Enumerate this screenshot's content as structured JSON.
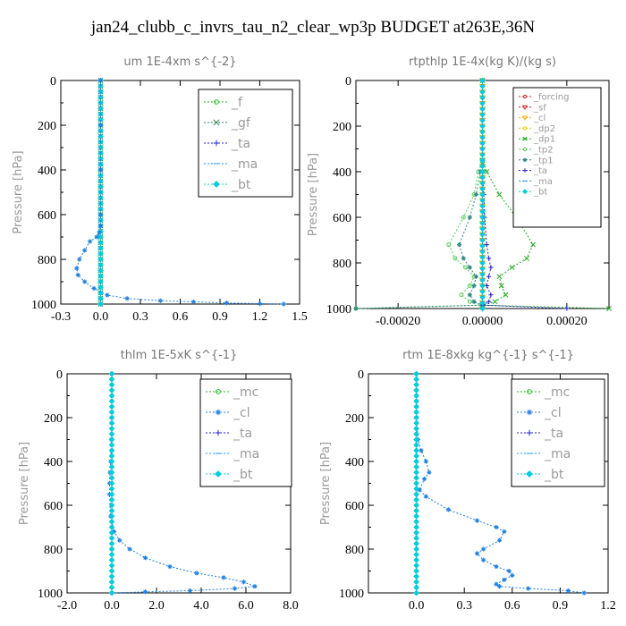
{
  "title": "jan24_clubb_c_invrs_tau_n2_clear_wp3p  BUDGET at263E,36N",
  "chart_data": [
    {
      "type": "line",
      "title": "um  1E-4xm s^{-2}",
      "ylabel": "Pressure [hPa]",
      "xlim": [
        -0.3,
        1.5
      ],
      "ylim": [
        1000,
        0
      ],
      "xticks": [
        -0.3,
        0.0,
        0.3,
        0.6,
        0.9,
        1.2,
        1.5
      ],
      "xtick_labels": [
        "-0.3",
        "0.0",
        "0.3",
        "0.6",
        "0.9",
        "1.2",
        "1.5"
      ],
      "yticks": [
        0,
        200,
        400,
        600,
        800,
        1000
      ],
      "legend_position": "top-right",
      "series": [
        {
          "name": "_f",
          "color": "#22bb22",
          "marker": "circle",
          "x": [
            0,
            0,
            0,
            0,
            0,
            0,
            0,
            0,
            0,
            0,
            0
          ],
          "y": [
            0,
            100,
            200,
            300,
            400,
            500,
            600,
            700,
            800,
            900,
            1000
          ]
        },
        {
          "name": "_gf",
          "color": "#2e8b57",
          "marker": "x",
          "x": [
            0,
            0,
            0,
            0,
            0,
            0,
            0,
            0,
            0,
            0,
            0
          ],
          "y": [
            0,
            100,
            200,
            300,
            400,
            500,
            600,
            700,
            800,
            900,
            1000
          ]
        },
        {
          "name": "_ta",
          "color": "#2222cc",
          "marker": "plus",
          "x": [
            0,
            0,
            0,
            0,
            0,
            0,
            0,
            0,
            0,
            0,
            0
          ],
          "y": [
            0,
            100,
            200,
            300,
            400,
            500,
            600,
            700,
            800,
            900,
            1000
          ]
        },
        {
          "name": "_ma",
          "color": "#1e90ff",
          "marker": "dash",
          "x": [
            0,
            0,
            0,
            0,
            0,
            0,
            0,
            0,
            0,
            0,
            0
          ],
          "y": [
            0,
            100,
            200,
            300,
            400,
            500,
            600,
            700,
            800,
            900,
            1000
          ]
        },
        {
          "name": "_bt",
          "color": "#00ccdd",
          "marker": "diamond",
          "x": [
            0,
            0,
            0,
            0,
            0,
            0,
            0,
            0,
            0,
            0,
            0
          ],
          "y": [
            0,
            100,
            200,
            300,
            400,
            500,
            600,
            700,
            800,
            900,
            1000
          ]
        },
        {
          "name": "",
          "color": "#1e7fe0",
          "marker": "star",
          "x": [
            0,
            0,
            0,
            0,
            0,
            -0.01,
            -0.03,
            -0.08,
            -0.12,
            -0.16,
            -0.18,
            -0.17,
            -0.12,
            -0.05,
            0.05,
            0.2,
            0.45,
            0.7,
            0.95,
            1.2,
            1.38
          ],
          "y": [
            0,
            200,
            400,
            600,
            650,
            680,
            700,
            720,
            760,
            800,
            840,
            870,
            900,
            930,
            960,
            975,
            985,
            990,
            995,
            998,
            1000
          ]
        }
      ]
    },
    {
      "type": "line",
      "title": "rtpthlp  1E-4x(kg K)/(kg s)",
      "ylabel": "Pressure [hPa]",
      "xlim": [
        -0.0003,
        0.0003
      ],
      "ylim": [
        1000,
        0
      ],
      "xticks": [
        -0.0002,
        0.0,
        0.0002
      ],
      "xtick_labels": [
        "-0.00020",
        "0.00000",
        "0.00020"
      ],
      "yticks": [
        0,
        200,
        400,
        600,
        800,
        1000
      ],
      "legend_position": "top-right",
      "series": [
        {
          "name": "_forcing",
          "color": "#cc2222",
          "marker": "circle",
          "x": [
            0,
            0,
            0,
            0,
            0,
            0,
            0,
            0,
            0,
            0,
            0
          ],
          "y": [
            0,
            100,
            200,
            300,
            400,
            500,
            600,
            700,
            800,
            900,
            1000
          ]
        },
        {
          "name": "_sf",
          "color": "#cc2222",
          "marker": "triangle",
          "x": [
            0,
            0,
            0,
            0,
            0,
            0,
            0,
            0,
            0,
            0,
            0
          ],
          "y": [
            0,
            100,
            200,
            300,
            400,
            500,
            600,
            700,
            800,
            900,
            1000
          ]
        },
        {
          "name": "_cl",
          "color": "#ffaa00",
          "marker": "triangle",
          "x": [
            0,
            0,
            0,
            0,
            0,
            0,
            0,
            0,
            0,
            0,
            0
          ],
          "y": [
            0,
            100,
            200,
            300,
            400,
            500,
            600,
            700,
            800,
            900,
            1000
          ]
        },
        {
          "name": "_dp2",
          "color": "#eecc00",
          "marker": "circle",
          "x": [
            0,
            0,
            0,
            0,
            0,
            0,
            0,
            0,
            0,
            0,
            0
          ],
          "y": [
            0,
            100,
            200,
            300,
            400,
            500,
            600,
            700,
            800,
            900,
            1000
          ]
        },
        {
          "name": "_dp1",
          "color": "#22aa22",
          "marker": "x",
          "x": [
            0,
            0,
            1e-05,
            4e-05,
            8e-05,
            0.00012,
            0.000105,
            7e-05,
            4e-05,
            4.5e-05,
            5.5e-05,
            3e-05,
            0.0,
            0.0003
          ],
          "y": [
            0,
            350,
            400,
            500,
            600,
            720,
            780,
            820,
            860,
            900,
            940,
            970,
            985,
            1000
          ]
        },
        {
          "name": "_tp2",
          "color": "#55cc55",
          "marker": "circle",
          "x": [
            0,
            0,
            -1e-05,
            -2e-05,
            -4.5e-05,
            -8e-05,
            -6.5e-05,
            -4e-05,
            -2e-05,
            -3e-05,
            -5e-05,
            -3e-05,
            0,
            -0.0003
          ],
          "y": [
            0,
            350,
            400,
            500,
            600,
            720,
            780,
            820,
            860,
            900,
            940,
            970,
            985,
            1000
          ]
        },
        {
          "name": "_tp1",
          "color": "#338888",
          "marker": "star",
          "x": [
            0,
            0,
            -5e-06,
            -1.5e-05,
            -3e-05,
            -5.5e-05,
            -4.5e-05,
            -3e-05,
            -1.5e-05,
            -2e-05,
            -3e-05,
            -2e-05,
            0,
            -0.0003
          ],
          "y": [
            0,
            350,
            400,
            500,
            600,
            720,
            780,
            820,
            860,
            900,
            940,
            970,
            985,
            1000
          ]
        },
        {
          "name": "_ta",
          "color": "#2222cc",
          "marker": "plus",
          "x": [
            0,
            0,
            0,
            3e-06,
            5e-06,
            1e-05,
            1.5e-05,
            2e-05,
            1.5e-05,
            1e-05,
            2e-05,
            1.5e-05,
            0,
            0.0002
          ],
          "y": [
            0,
            350,
            400,
            500,
            600,
            720,
            780,
            820,
            860,
            900,
            940,
            970,
            985,
            1000
          ]
        },
        {
          "name": "_ma",
          "color": "#1e90ff",
          "marker": "dash",
          "x": [
            0,
            0,
            0,
            0,
            0,
            0,
            0,
            0,
            0,
            0,
            0
          ],
          "y": [
            0,
            100,
            200,
            300,
            400,
            500,
            600,
            700,
            800,
            900,
            1000
          ]
        },
        {
          "name": "_bt",
          "color": "#00ccdd",
          "marker": "diamond",
          "x": [
            0,
            0,
            0,
            0,
            0,
            0,
            0,
            0,
            0,
            0,
            0
          ],
          "y": [
            0,
            100,
            200,
            300,
            400,
            500,
            600,
            700,
            800,
            900,
            1000
          ]
        }
      ]
    },
    {
      "type": "line",
      "title": "thlm  1E-5xK s^{-1}",
      "ylabel": "Pressure [hPa]",
      "xlim": [
        -2.0,
        8.0
      ],
      "ylim": [
        1000,
        0
      ],
      "xticks": [
        -2.0,
        0.0,
        2.0,
        4.0,
        6.0,
        8.0
      ],
      "xtick_labels": [
        "-2.0",
        "0.0",
        "2.0",
        "4.0",
        "6.0",
        "8.0"
      ],
      "yticks": [
        0,
        200,
        400,
        600,
        800,
        1000
      ],
      "legend_position": "top-right",
      "series": [
        {
          "name": "_mc",
          "color": "#22bb22",
          "marker": "circle",
          "x": [
            0,
            0,
            0,
            0,
            0,
            0,
            0,
            0,
            0,
            0,
            0
          ],
          "y": [
            0,
            100,
            200,
            300,
            400,
            500,
            600,
            700,
            800,
            900,
            1000
          ]
        },
        {
          "name": "_cl",
          "color": "#1e7fe0",
          "marker": "star",
          "x": [
            0,
            0,
            -0.02,
            -0.05,
            -0.08,
            -0.1,
            -0.1,
            -0.05,
            0.1,
            0.35,
            0.8,
            1.5,
            2.6,
            3.8,
            5.0,
            5.9,
            6.4,
            5.5,
            3.5,
            1.5,
            0
          ],
          "y": [
            0,
            200,
            300,
            400,
            450,
            500,
            550,
            650,
            720,
            760,
            800,
            840,
            880,
            910,
            930,
            950,
            970,
            980,
            990,
            995,
            1000
          ]
        },
        {
          "name": "_ta",
          "color": "#2222cc",
          "marker": "plus",
          "x": [
            0,
            0,
            0,
            0,
            0,
            0,
            0,
            0,
            0,
            0,
            0
          ],
          "y": [
            0,
            100,
            200,
            300,
            400,
            500,
            600,
            700,
            800,
            900,
            1000
          ]
        },
        {
          "name": "_ma",
          "color": "#1e90ff",
          "marker": "dash",
          "x": [
            0,
            0,
            0,
            0,
            0,
            0,
            0,
            0,
            0,
            0,
            0
          ],
          "y": [
            0,
            100,
            200,
            300,
            400,
            500,
            600,
            700,
            800,
            900,
            1000
          ]
        },
        {
          "name": "_bt",
          "color": "#00ccdd",
          "marker": "diamond",
          "x": [
            0,
            0,
            0,
            0,
            0,
            0,
            0,
            0,
            0,
            0,
            0
          ],
          "y": [
            0,
            100,
            200,
            300,
            400,
            500,
            600,
            700,
            800,
            900,
            1000
          ]
        }
      ]
    },
    {
      "type": "line",
      "title": "rtm  1E-8xkg kg^{-1} s^{-1}",
      "ylabel": "Pressure [hPa]",
      "xlim": [
        -0.3,
        1.2
      ],
      "ylim": [
        1000,
        0
      ],
      "xticks": [
        0.0,
        0.3,
        0.6,
        0.9,
        1.2
      ],
      "xtick_labels": [
        "0.0",
        "0.3",
        "0.6",
        "0.9",
        "1.2"
      ],
      "yticks": [
        0,
        200,
        400,
        600,
        800,
        1000
      ],
      "legend_position": "top-right",
      "series": [
        {
          "name": "_mc",
          "color": "#22bb22",
          "marker": "circle",
          "x": [
            0,
            0,
            0,
            0,
            0,
            0,
            0,
            0,
            0,
            0,
            0
          ],
          "y": [
            0,
            100,
            200,
            300,
            400,
            500,
            600,
            700,
            800,
            900,
            1000
          ]
        },
        {
          "name": "_cl",
          "color": "#1e7fe0",
          "marker": "star",
          "x": [
            0,
            0,
            0.01,
            0.03,
            0.06,
            0.08,
            0.05,
            0.02,
            0.06,
            0.2,
            0.38,
            0.5,
            0.55,
            0.52,
            0.42,
            0.38,
            0.42,
            0.5,
            0.58,
            0.6,
            0.55,
            0.5,
            0.52,
            0.7,
            0.95,
            1.05
          ],
          "y": [
            0,
            200,
            300,
            350,
            400,
            450,
            480,
            530,
            560,
            620,
            670,
            700,
            720,
            760,
            800,
            820,
            850,
            880,
            900,
            920,
            940,
            960,
            970,
            980,
            990,
            1000
          ]
        },
        {
          "name": "_ta",
          "color": "#2222cc",
          "marker": "plus",
          "x": [
            0,
            0,
            0,
            0,
            0,
            0,
            0,
            0,
            0,
            0,
            0
          ],
          "y": [
            0,
            100,
            200,
            300,
            400,
            500,
            600,
            700,
            800,
            900,
            1000
          ]
        },
        {
          "name": "_ma",
          "color": "#1e90ff",
          "marker": "dash",
          "x": [
            0,
            0,
            0,
            0,
            0,
            0,
            0,
            0,
            0,
            0,
            0
          ],
          "y": [
            0,
            100,
            200,
            300,
            400,
            500,
            600,
            700,
            800,
            900,
            1000
          ]
        },
        {
          "name": "_bt",
          "color": "#00ccdd",
          "marker": "diamond",
          "x": [
            0,
            0,
            0,
            0,
            0,
            0,
            0,
            0,
            0,
            0,
            0
          ],
          "y": [
            0,
            100,
            200,
            300,
            400,
            500,
            600,
            700,
            800,
            900,
            1000
          ]
        }
      ]
    }
  ]
}
